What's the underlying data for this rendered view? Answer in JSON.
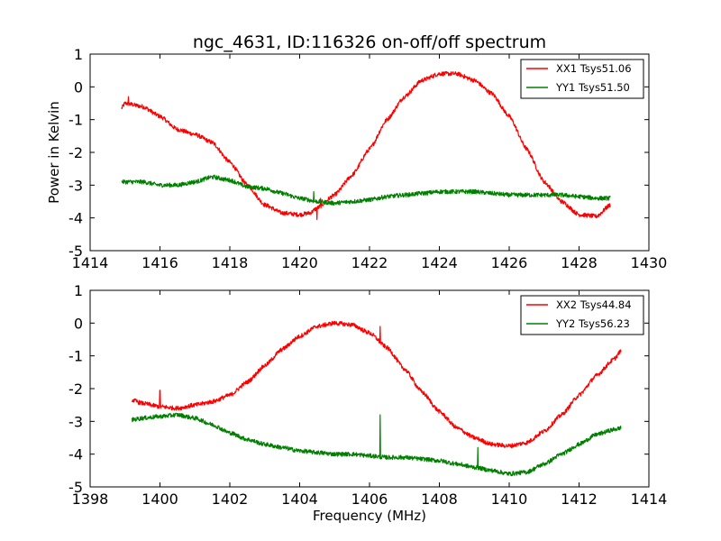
{
  "chart_data": [
    {
      "type": "line",
      "title": "ngc_4631, ID:116326 on-off/off spectrum",
      "xlabel": "",
      "ylabel": "Power in Kelvin",
      "xlim": [
        1414,
        1430
      ],
      "ylim": [
        -5,
        1
      ],
      "xticks": [
        1414,
        1416,
        1418,
        1420,
        1422,
        1424,
        1426,
        1428,
        1430
      ],
      "yticks": [
        -5,
        -4,
        -3,
        -2,
        -1,
        0,
        1
      ],
      "legend_position": "top-right",
      "grid": false,
      "series": [
        {
          "name": "XX1 Tsys51.06",
          "color": "#ff0000",
          "x": [
            1414.9,
            1415.0,
            1415.5,
            1416.0,
            1416.5,
            1417.0,
            1417.5,
            1418.0,
            1418.5,
            1419.0,
            1419.5,
            1420.0,
            1420.3,
            1420.5,
            1421.0,
            1421.5,
            1422.0,
            1422.5,
            1423.0,
            1423.5,
            1424.0,
            1424.5,
            1425.0,
            1425.5,
            1426.0,
            1426.5,
            1427.0,
            1427.5,
            1428.0,
            1428.5,
            1428.9
          ],
          "y": [
            -0.65,
            -0.5,
            -0.6,
            -0.9,
            -1.3,
            -1.45,
            -1.7,
            -2.3,
            -3.0,
            -3.6,
            -3.85,
            -3.9,
            -3.85,
            -3.7,
            -3.3,
            -2.7,
            -1.9,
            -1.0,
            -0.3,
            0.2,
            0.4,
            0.4,
            0.2,
            -0.2,
            -0.9,
            -1.9,
            -2.9,
            -3.5,
            -3.9,
            -3.95,
            -3.6
          ],
          "spikes": [
            {
              "x": 1415.1,
              "y": -0.3
            },
            {
              "x": 1420.5,
              "y": -4.05
            },
            {
              "x": 1420.6,
              "y": -3.4
            }
          ]
        },
        {
          "name": "YY1 Tsys51.50",
          "color": "#008000",
          "x": [
            1414.9,
            1415.5,
            1416.0,
            1416.5,
            1417.0,
            1417.5,
            1418.0,
            1418.5,
            1419.0,
            1419.5,
            1420.0,
            1420.5,
            1421.0,
            1421.5,
            1422.0,
            1422.5,
            1423.0,
            1423.5,
            1424.0,
            1424.5,
            1425.0,
            1425.5,
            1426.0,
            1426.5,
            1427.0,
            1427.5,
            1428.0,
            1428.5,
            1428.9
          ],
          "y": [
            -2.9,
            -2.9,
            -3.0,
            -3.0,
            -2.9,
            -2.75,
            -2.85,
            -3.05,
            -3.1,
            -3.25,
            -3.4,
            -3.5,
            -3.55,
            -3.5,
            -3.45,
            -3.35,
            -3.3,
            -3.25,
            -3.2,
            -3.2,
            -3.2,
            -3.25,
            -3.3,
            -3.3,
            -3.3,
            -3.3,
            -3.35,
            -3.4,
            -3.4
          ],
          "spikes": [
            {
              "x": 1420.4,
              "y": -3.2
            }
          ]
        }
      ]
    },
    {
      "type": "line",
      "title": "",
      "xlabel": "Frequency (MHz)",
      "ylabel": "",
      "xlim": [
        1398,
        1414
      ],
      "ylim": [
        -5,
        1
      ],
      "xticks": [
        1398,
        1400,
        1402,
        1404,
        1406,
        1408,
        1410,
        1412,
        1414
      ],
      "yticks": [
        -5,
        -4,
        -3,
        -2,
        -1,
        0,
        1
      ],
      "legend_position": "top-right",
      "grid": false,
      "series": [
        {
          "name": "XX2 Tsys44.84",
          "color": "#ff0000",
          "x": [
            1399.2,
            1399.5,
            1400.0,
            1400.5,
            1401.0,
            1401.5,
            1402.0,
            1402.5,
            1403.0,
            1403.5,
            1404.0,
            1404.5,
            1405.0,
            1405.5,
            1406.0,
            1406.5,
            1407.0,
            1407.5,
            1408.0,
            1408.5,
            1409.0,
            1409.5,
            1410.0,
            1410.5,
            1411.0,
            1411.5,
            1412.0,
            1412.5,
            1413.0,
            1413.2
          ],
          "y": [
            -2.35,
            -2.45,
            -2.55,
            -2.6,
            -2.5,
            -2.4,
            -2.2,
            -1.8,
            -1.3,
            -0.8,
            -0.4,
            -0.1,
            0.0,
            -0.05,
            -0.3,
            -0.75,
            -1.4,
            -2.1,
            -2.7,
            -3.2,
            -3.5,
            -3.7,
            -3.75,
            -3.65,
            -3.3,
            -2.8,
            -2.2,
            -1.6,
            -1.1,
            -0.85
          ],
          "spikes": [
            {
              "x": 1400.0,
              "y": -2.05
            },
            {
              "x": 1406.3,
              "y": -0.1
            }
          ]
        },
        {
          "name": "YY2 Tsys56.23",
          "color": "#008000",
          "x": [
            1399.2,
            1399.5,
            1400.0,
            1400.5,
            1401.0,
            1401.5,
            1402.0,
            1402.5,
            1403.0,
            1403.5,
            1404.0,
            1404.5,
            1405.0,
            1405.5,
            1406.0,
            1406.5,
            1407.0,
            1407.5,
            1408.0,
            1408.5,
            1409.0,
            1409.5,
            1410.0,
            1410.5,
            1411.0,
            1411.5,
            1412.0,
            1412.5,
            1413.0,
            1413.2
          ],
          "y": [
            -2.95,
            -2.9,
            -2.85,
            -2.8,
            -2.9,
            -3.1,
            -3.35,
            -3.55,
            -3.7,
            -3.8,
            -3.9,
            -3.95,
            -4.0,
            -4.0,
            -4.05,
            -4.1,
            -4.1,
            -4.15,
            -4.2,
            -4.3,
            -4.4,
            -4.5,
            -4.6,
            -4.55,
            -4.3,
            -4.0,
            -3.7,
            -3.4,
            -3.25,
            -3.2
          ],
          "spikes": [
            {
              "x": 1406.3,
              "y": -2.8
            },
            {
              "x": 1409.1,
              "y": -3.8
            }
          ]
        }
      ]
    }
  ]
}
